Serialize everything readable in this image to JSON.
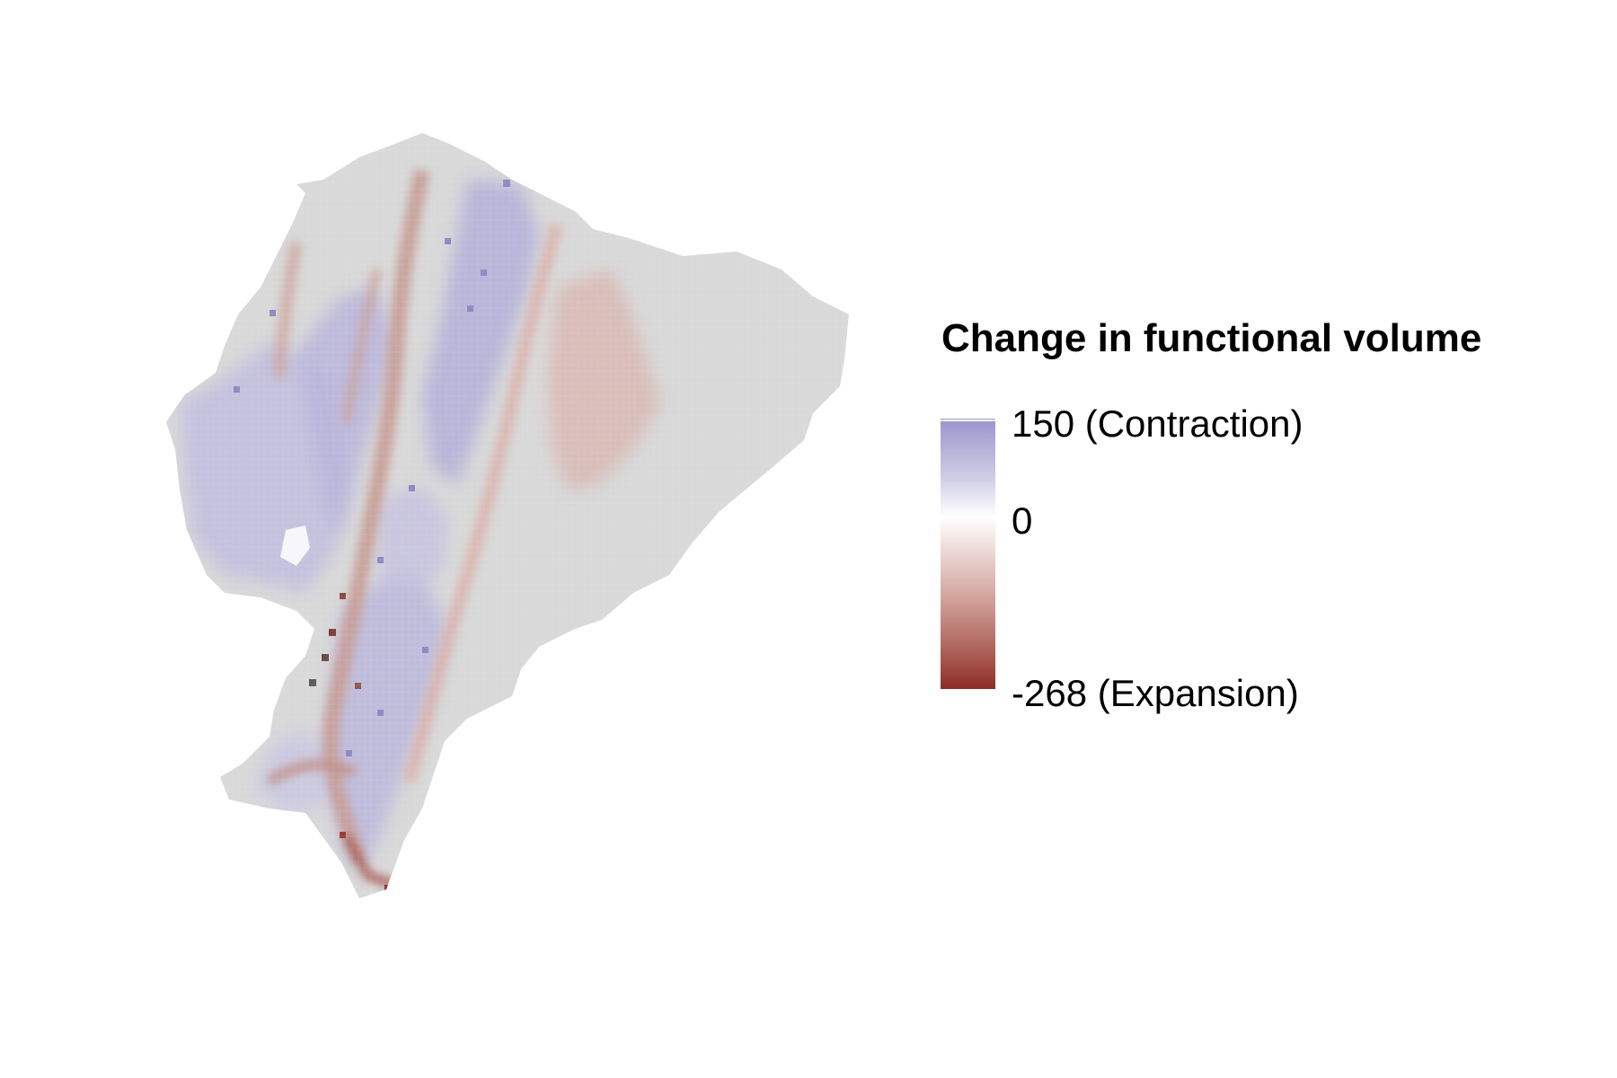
{
  "legend": {
    "title": "Change in functional volume",
    "max_label": "150 (Contraction)",
    "mid_label": "0",
    "min_label": "-268 (Expansion)",
    "max_value": 150,
    "min_value": -268,
    "colors": {
      "contraction": "#9b95cb",
      "zero": "#ffffff",
      "expansion": "#8e2a25",
      "no_change_area": "#d9d9d9"
    }
  }
}
